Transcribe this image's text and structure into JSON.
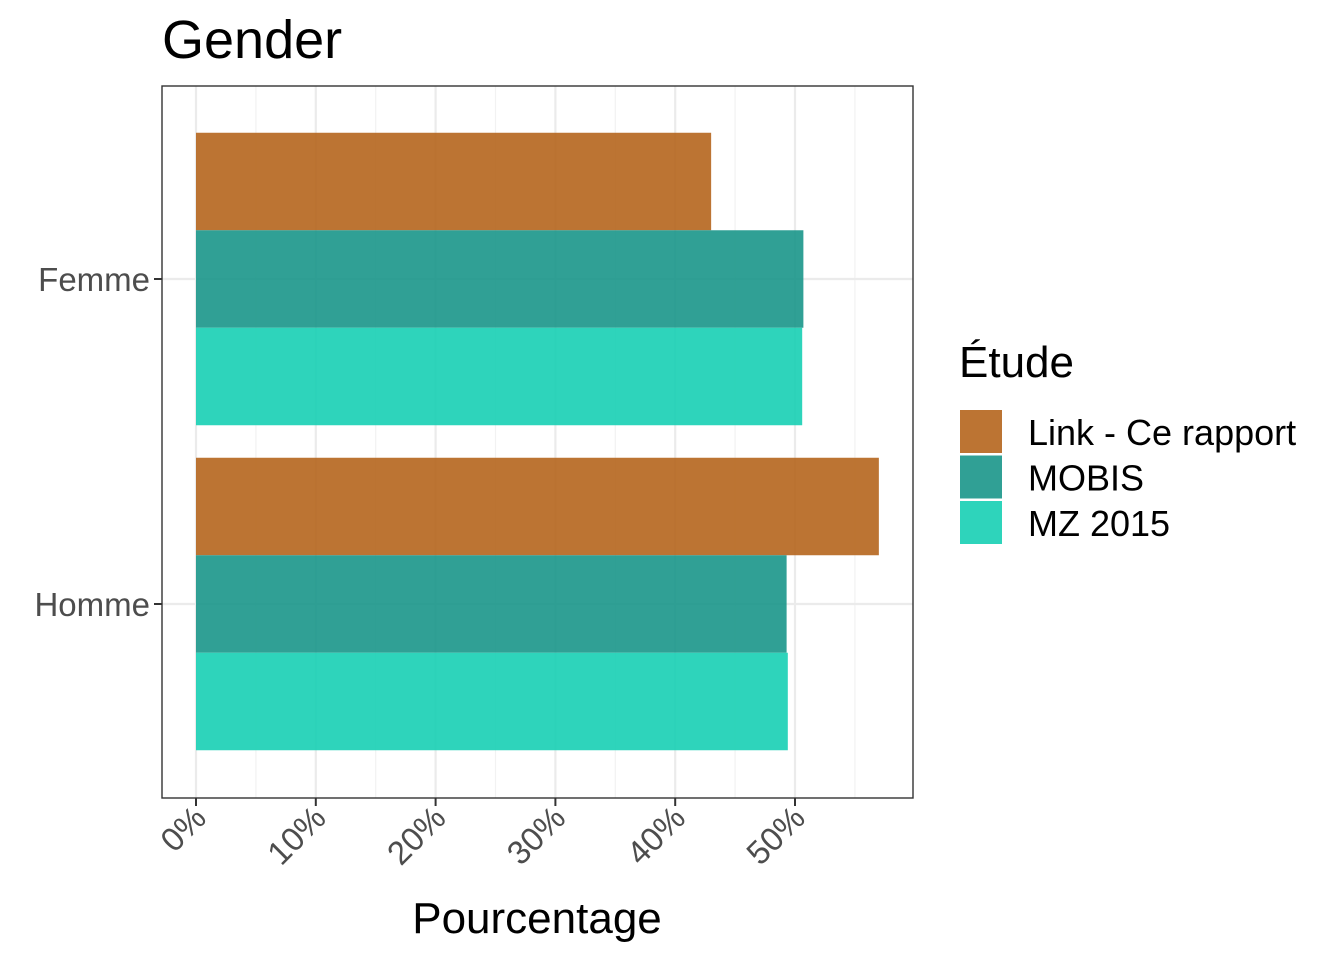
{
  "chart_data": {
    "type": "bar",
    "orientation": "horizontal",
    "title": "Gender",
    "xlabel": "Pourcentage",
    "ylabel": "",
    "categories": [
      "Femme",
      "Homme"
    ],
    "x_ticks": [
      "0%",
      "10%",
      "20%",
      "30%",
      "40%",
      "50%"
    ],
    "x_tick_values": [
      0,
      10,
      20,
      30,
      40,
      50
    ],
    "xlim": [
      -2.8,
      59.9
    ],
    "grid": true,
    "legend": {
      "title": "Étude",
      "position": "right"
    },
    "series": [
      {
        "name": "Link - Ce rapport",
        "color": "#b5651d",
        "values": [
          43.0,
          57.0
        ]
      },
      {
        "name": "MOBIS",
        "color": "#1a968a",
        "values": [
          50.7,
          49.3
        ]
      },
      {
        "name": "MZ 2015",
        "color": "#17cfb4",
        "values": [
          50.6,
          49.4
        ]
      }
    ]
  }
}
